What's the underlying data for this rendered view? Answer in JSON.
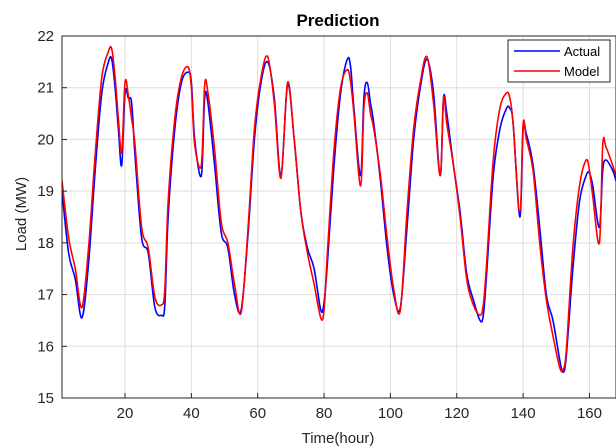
{
  "chart_data": {
    "type": "line",
    "title": "Prediction",
    "xlabel": "Time(hour)",
    "ylabel": "Load (MW)",
    "xlim": [
      1,
      168
    ],
    "ylim": [
      15,
      22
    ],
    "xticks": [
      20,
      40,
      60,
      80,
      100,
      120,
      140,
      160
    ],
    "yticks": [
      15,
      16,
      17,
      18,
      19,
      20,
      21,
      22
    ],
    "grid": true,
    "legend_position": "top-right",
    "series": [
      {
        "name": "Actual",
        "color": "#0000ff",
        "x": [
          1,
          3,
          5,
          7,
          9,
          11,
          13,
          15,
          16,
          17,
          18,
          19,
          20,
          21,
          22,
          23,
          25,
          27,
          29,
          31,
          32,
          33,
          35,
          37,
          39,
          40,
          41,
          43,
          44,
          45,
          47,
          49,
          51,
          53,
          55,
          57,
          59,
          61,
          63,
          65,
          67,
          69,
          71,
          73,
          75,
          77,
          79,
          80,
          81,
          83,
          85,
          87,
          88,
          89,
          91,
          92,
          93,
          94,
          95,
          97,
          99,
          101,
          103,
          105,
          107,
          109,
          111,
          113,
          115,
          116,
          117,
          119,
          121,
          123,
          125,
          127,
          128,
          129,
          131,
          133,
          135,
          136,
          137,
          139,
          140,
          141,
          143,
          145,
          147,
          149,
          151,
          152,
          153,
          155,
          157,
          159,
          160,
          161,
          163,
          164,
          165,
          167,
          168
        ],
        "values": [
          19.0,
          17.8,
          17.3,
          16.55,
          17.6,
          19.4,
          20.9,
          21.5,
          21.55,
          21.0,
          20.2,
          19.5,
          20.9,
          20.8,
          20.7,
          19.7,
          18.1,
          17.8,
          16.75,
          16.6,
          16.8,
          18.5,
          20.2,
          21.1,
          21.3,
          21.1,
          20.0,
          19.3,
          20.8,
          20.7,
          19.5,
          18.2,
          17.9,
          17.0,
          16.7,
          18.1,
          20.0,
          21.1,
          21.5,
          20.8,
          19.3,
          21.05,
          20.0,
          18.6,
          17.9,
          17.5,
          16.7,
          16.85,
          17.6,
          19.5,
          20.9,
          21.55,
          21.4,
          20.6,
          19.3,
          20.8,
          21.1,
          20.7,
          20.3,
          19.2,
          17.9,
          17.0,
          16.75,
          18.3,
          20.0,
          21.0,
          21.55,
          20.9,
          19.3,
          20.8,
          20.5,
          19.5,
          18.6,
          17.4,
          16.9,
          16.5,
          16.6,
          17.4,
          19.3,
          20.2,
          20.6,
          20.6,
          20.3,
          18.5,
          20.2,
          20.1,
          19.5,
          18.3,
          17.0,
          16.5,
          15.75,
          15.5,
          15.8,
          17.5,
          18.8,
          19.3,
          19.35,
          19.1,
          18.3,
          19.4,
          19.6,
          19.4,
          19.2
        ]
      },
      {
        "name": "Model",
        "color": "#ff0000",
        "x": [
          1,
          3,
          5,
          7,
          9,
          11,
          13,
          15,
          16,
          17,
          18,
          19,
          20,
          21,
          22,
          23,
          25,
          27,
          29,
          31,
          32,
          33,
          35,
          37,
          39,
          40,
          41,
          43,
          44,
          45,
          47,
          49,
          51,
          53,
          55,
          57,
          59,
          61,
          63,
          65,
          67,
          69,
          71,
          73,
          75,
          77,
          79,
          80,
          81,
          83,
          85,
          87,
          88,
          89,
          91,
          92,
          93,
          94,
          95,
          97,
          99,
          101,
          103,
          105,
          107,
          109,
          111,
          113,
          115,
          116,
          117,
          119,
          121,
          123,
          125,
          127,
          128,
          129,
          131,
          133,
          135,
          136,
          137,
          139,
          140,
          141,
          143,
          145,
          147,
          149,
          151,
          152,
          153,
          155,
          157,
          159,
          160,
          161,
          163,
          164,
          165,
          167,
          168
        ],
        "values": [
          19.2,
          18.1,
          17.5,
          16.75,
          17.9,
          19.7,
          21.2,
          21.7,
          21.75,
          21.2,
          20.4,
          19.75,
          21.1,
          20.85,
          20.4,
          19.9,
          18.3,
          17.9,
          16.95,
          16.8,
          17.1,
          18.8,
          20.4,
          21.2,
          21.4,
          21.0,
          19.9,
          19.5,
          21.05,
          20.9,
          19.8,
          18.4,
          18.0,
          17.2,
          16.65,
          18.2,
          20.2,
          21.2,
          21.6,
          20.7,
          19.25,
          21.1,
          20.0,
          18.6,
          17.8,
          17.2,
          16.55,
          16.7,
          17.8,
          19.8,
          21.0,
          21.35,
          21.1,
          20.5,
          19.1,
          20.6,
          20.9,
          20.5,
          20.2,
          19.3,
          18.1,
          17.1,
          16.7,
          18.6,
          20.2,
          21.1,
          21.6,
          20.7,
          19.3,
          20.8,
          20.3,
          19.5,
          18.5,
          17.3,
          16.8,
          16.6,
          16.8,
          17.6,
          19.6,
          20.6,
          20.9,
          20.8,
          20.3,
          18.6,
          20.3,
          20.0,
          19.4,
          18.0,
          16.9,
          16.2,
          15.6,
          15.55,
          15.9,
          17.9,
          19.1,
          19.6,
          19.4,
          18.9,
          18.0,
          19.9,
          19.85,
          19.5,
          19.3
        ]
      }
    ]
  }
}
